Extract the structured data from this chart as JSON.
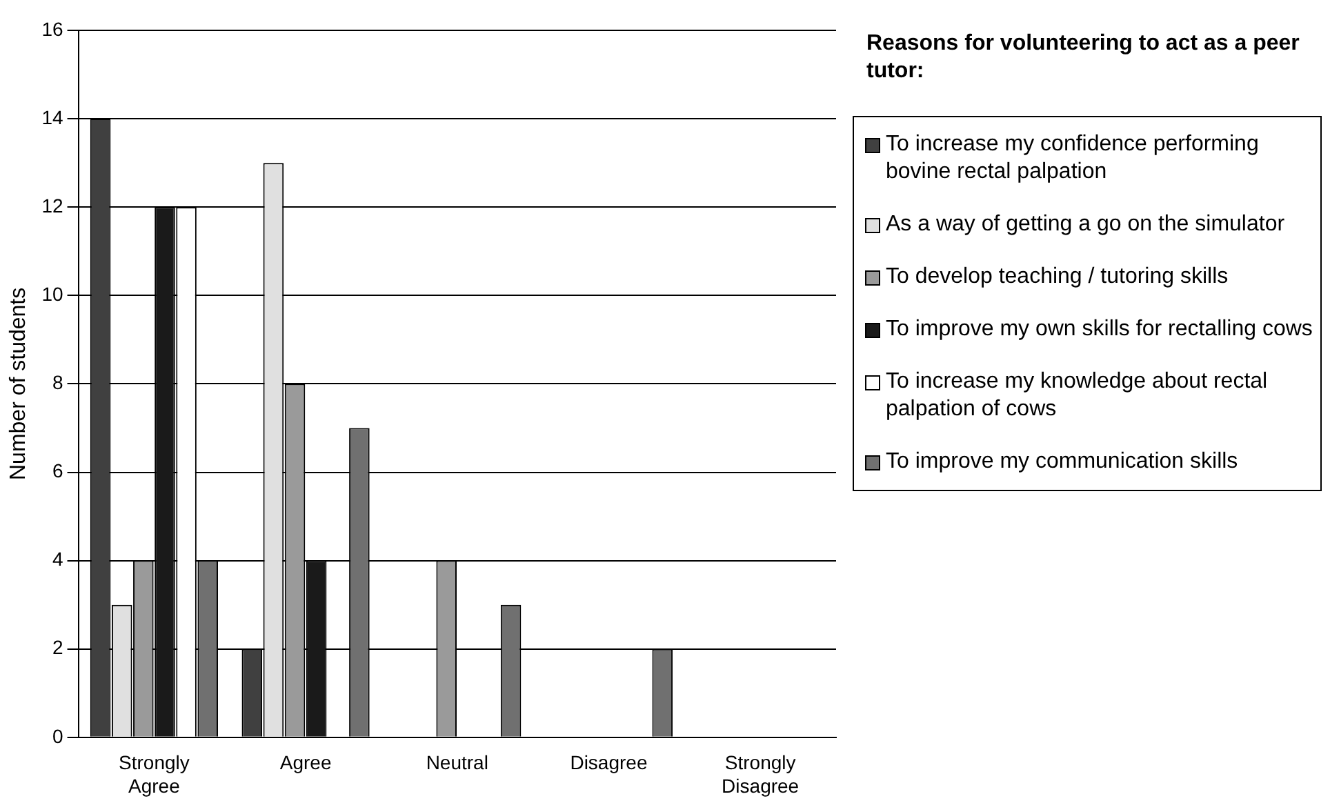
{
  "chart_data": {
    "type": "bar",
    "ylabel": "Number of students",
    "legend_title": "Reasons for volunteering to act as a peer tutor:",
    "categories": [
      "Strongly Agree",
      "Agree",
      "Neutral",
      "Disagree",
      "Strongly Disagree"
    ],
    "series": [
      {
        "name": "To increase my confidence performing bovine rectal palpation",
        "color": "#404040",
        "values": [
          14,
          2,
          0,
          0,
          0
        ]
      },
      {
        "name": "As a way of getting a go on the simulator",
        "color": "#e0e0e0",
        "values": [
          3,
          13,
          0,
          0,
          0
        ]
      },
      {
        "name": "To develop teaching / tutoring skills",
        "color": "#9a9a9a",
        "values": [
          4,
          8,
          4,
          0,
          0
        ]
      },
      {
        "name": "To improve my own skills for rectalling cows",
        "color": "#1a1a1a",
        "values": [
          12,
          4,
          0,
          0,
          0
        ]
      },
      {
        "name": "To increase my knowledge about rectal palpation of cows",
        "color": "#ffffff",
        "values": [
          12,
          0,
          0,
          0,
          0
        ]
      },
      {
        "name": "To improve my communication skills",
        "color": "#707070",
        "values": [
          4,
          7,
          3,
          2,
          0
        ]
      }
    ],
    "ylim": [
      0,
      16
    ],
    "yticks": [
      0,
      2,
      4,
      6,
      8,
      10,
      12,
      14,
      16
    ],
    "grid": "y",
    "legend": "right"
  }
}
